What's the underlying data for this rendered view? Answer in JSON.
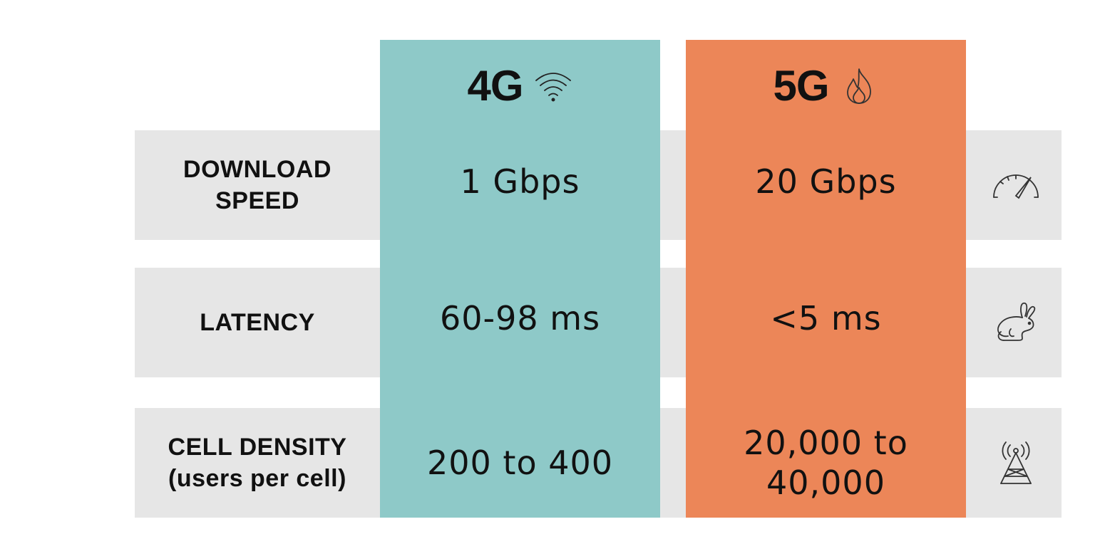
{
  "columns": [
    {
      "title": "4G",
      "icon": "wifi-icon",
      "color": "#8ec9c8"
    },
    {
      "title": "5G",
      "icon": "flame-icon",
      "color": "#ec8658"
    }
  ],
  "rows": [
    {
      "label": "DOWNLOAD\nSPEED",
      "values": [
        "1 Gbps",
        "20 Gbps"
      ],
      "icon": "speedometer-icon"
    },
    {
      "label": "LATENCY",
      "values": [
        "60-98 ms",
        "<5 ms"
      ],
      "icon": "rabbit-icon"
    },
    {
      "label": "CELL DENSITY\n(users per cell)",
      "values": [
        "200 to 400",
        "20,000 to\n40,000"
      ],
      "icon": "cell-tower-icon"
    }
  ],
  "colors": {
    "row_band": "#e6e6e6",
    "background": "#ffffff"
  }
}
